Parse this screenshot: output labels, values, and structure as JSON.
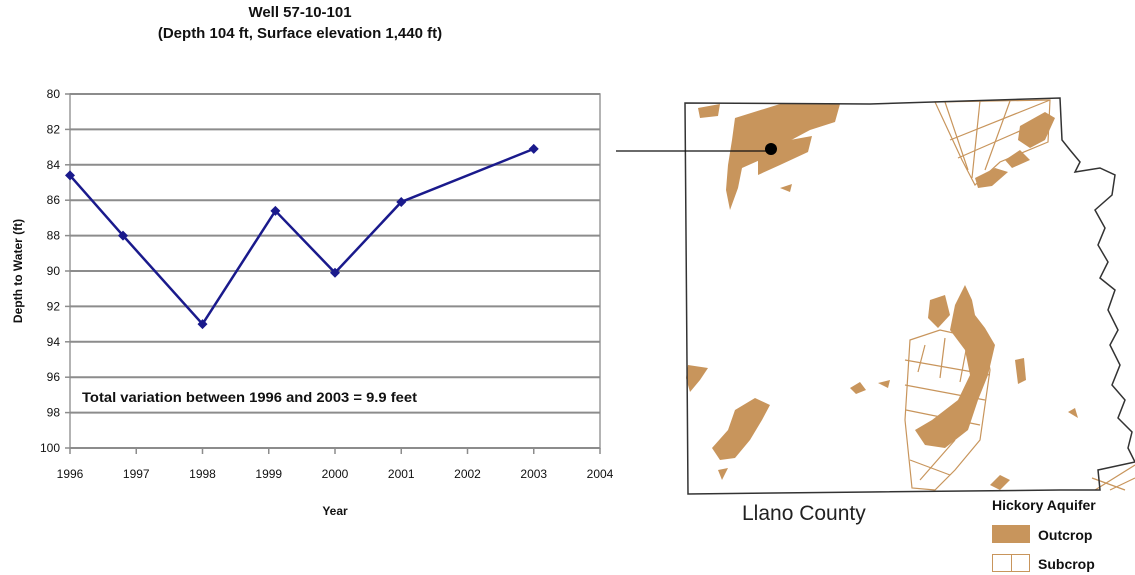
{
  "chart_data": {
    "type": "line",
    "title": "Well 57-10-101",
    "subtitle": "(Depth 104 ft, Surface elevation  1,440 ft)",
    "xlabel": "Year",
    "ylabel": "Depth to Water (ft)",
    "x_ticks": [
      "1996",
      "1997",
      "1998",
      "1999",
      "2000",
      "2001",
      "2002",
      "2003",
      "2004"
    ],
    "y_ticks": [
      "80",
      "82",
      "84",
      "86",
      "88",
      "90",
      "92",
      "94",
      "96",
      "98",
      "100"
    ],
    "xlim": [
      1996,
      2004
    ],
    "ylim": [
      80,
      100
    ],
    "y_inverted": true,
    "grid": "horizontal",
    "series": [
      {
        "color": "#1a1a8c",
        "marker": "diamond",
        "points": [
          {
            "x": 1996.0,
            "y": 84.6
          },
          {
            "x": 1996.8,
            "y": 88.0
          },
          {
            "x": 1998.0,
            "y": 93.0
          },
          {
            "x": 1999.1,
            "y": 86.6
          },
          {
            "x": 2000.0,
            "y": 90.1
          },
          {
            "x": 2001.0,
            "y": 86.1
          },
          {
            "x": 2003.0,
            "y": 83.1
          }
        ]
      }
    ],
    "annotation": "Total variation between 1996 and 2003 = 9.9 feet"
  },
  "map": {
    "county_name": "Llano County",
    "legend_title": "Hickory Aquifer",
    "legend_items": [
      "Outcrop",
      "Subcrop"
    ],
    "outcrop_color": "#c8955c"
  }
}
